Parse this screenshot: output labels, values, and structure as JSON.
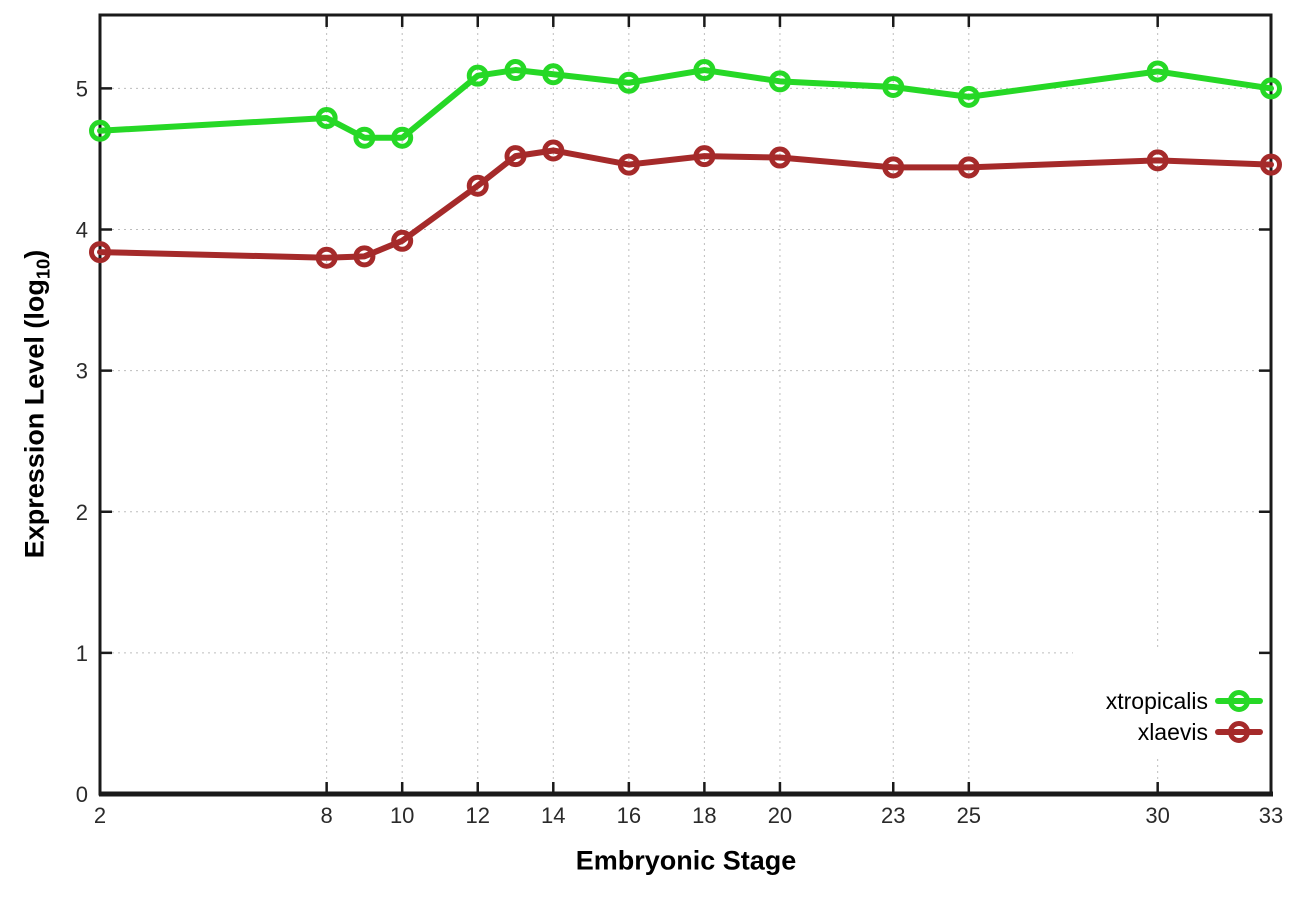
{
  "chart_data": {
    "type": "line",
    "title": "",
    "xlabel": "Embryonic Stage",
    "ylabel": {
      "pre": "Expression Level (log",
      "sub": "10",
      "post": ")"
    },
    "x_ticks": [
      2,
      8,
      10,
      12,
      14,
      16,
      18,
      20,
      23,
      25,
      30,
      33
    ],
    "y_ticks": [
      0,
      1,
      2,
      3,
      4,
      5
    ],
    "xlim": [
      2,
      33
    ],
    "ylim": [
      0,
      5.52
    ],
    "grid": true,
    "grid_style": "dotted",
    "legend_position": "bottom-right-inside",
    "marker": "open-circle",
    "x": [
      2,
      8,
      9,
      10,
      12,
      13,
      14,
      16,
      18,
      20,
      23,
      25,
      30,
      33
    ],
    "series": [
      {
        "name": "xtropicalis",
        "color": "#26d826",
        "values": [
          4.7,
          4.79,
          4.65,
          4.65,
          5.09,
          5.13,
          5.1,
          5.04,
          5.13,
          5.05,
          5.01,
          4.94,
          5.12,
          5.0
        ]
      },
      {
        "name": "xlaevis",
        "color": "#a52a2a",
        "values": [
          3.84,
          3.8,
          3.81,
          3.92,
          4.31,
          4.52,
          4.56,
          4.46,
          4.52,
          4.51,
          4.44,
          4.44,
          4.49,
          4.46
        ]
      }
    ],
    "style": {
      "axis_color": "#1a1a1a",
      "grid_color": "#bdbdbd",
      "tick_label_color": "#2a2a2a",
      "background": "#ffffff"
    }
  }
}
